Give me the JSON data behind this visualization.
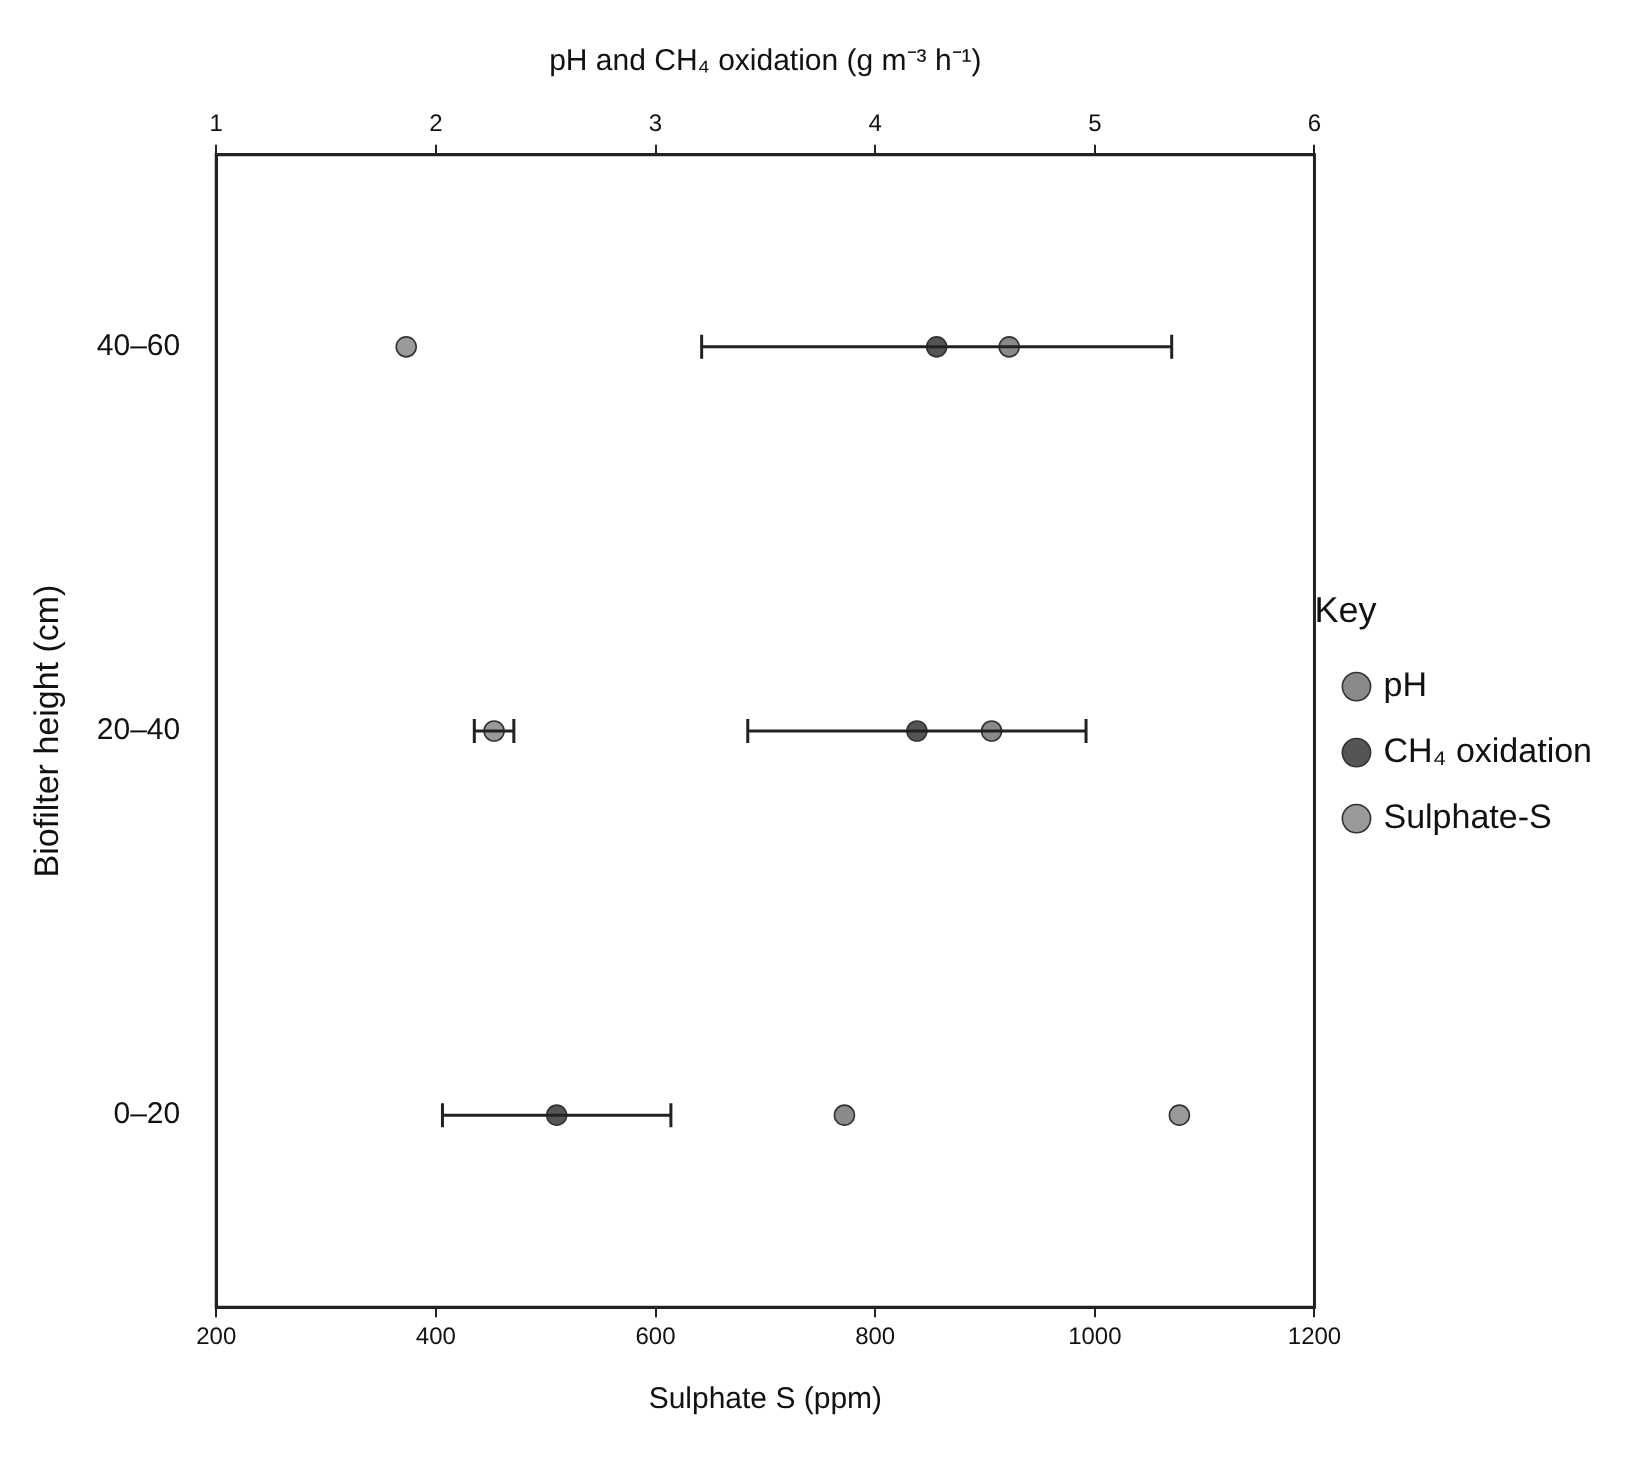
{
  "chart_data": {
    "type": "scatter",
    "orientation": "horizontal",
    "x2label": "pH and CH₄ oxidation (g m⁻³ h⁻¹)",
    "xlabel": "Sulphate S (ppm)",
    "ylabel": "Biofilter height (cm)",
    "legend_title": "Key",
    "categories": [
      "40–60",
      "20–40",
      "0–20"
    ],
    "series": [
      {
        "name": "pH",
        "color": "#8a8a8a",
        "axis": "x2",
        "values": [
          4.61,
          4.53,
          3.86
        ]
      },
      {
        "name": "CH₄ oxidation",
        "color": "#555555",
        "axis": "x2",
        "values": [
          4.28,
          4.19,
          2.55
        ],
        "errors": [
          1.07,
          0.77,
          0.52
        ]
      },
      {
        "name": "Sulphate-S",
        "color": "#9a9a9a",
        "values": [
          373,
          453,
          1077
        ],
        "errors": [
          null,
          18,
          null
        ]
      }
    ],
    "xlim": [
      200,
      1200
    ],
    "xticks": [
      200,
      400,
      600,
      800,
      1000,
      1200
    ],
    "x2lim": [
      1,
      6
    ],
    "x2ticks": [
      1,
      2,
      3,
      4,
      5,
      6
    ],
    "grid": false,
    "legend": "right",
    "marker": "circle"
  }
}
